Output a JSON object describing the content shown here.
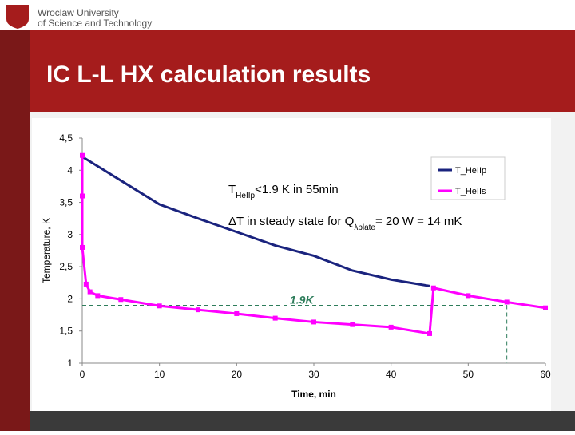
{
  "header": {
    "university": [
      "Wroclaw University",
      "of Science and Technology"
    ]
  },
  "chart_data": {
    "type": "line",
    "title": "IC L-L HX calculation results",
    "x_label": "Time, min",
    "y_label": "Temperature, K",
    "xlim": [
      0,
      60
    ],
    "xticks": [
      0,
      10,
      20,
      30,
      40,
      50,
      60
    ],
    "ylim": [
      1,
      4.5
    ],
    "yticks": [
      {
        "value": 1,
        "label": "1"
      },
      {
        "value": 1.5,
        "label": "1,5"
      },
      {
        "value": 2,
        "label": "2"
      },
      {
        "value": 2.5,
        "label": "2,5"
      },
      {
        "value": 3,
        "label": "3"
      },
      {
        "value": 3.5,
        "label": "3,5"
      },
      {
        "value": 4,
        "label": "4"
      },
      {
        "value": 4.5,
        "label": "4,5"
      }
    ],
    "series": [
      {
        "name": "T_HeIIp",
        "color": "#1a237e",
        "markers": false,
        "x": [
          0,
          5,
          10,
          15,
          20,
          25,
          30,
          35,
          40,
          45
        ],
        "values": [
          4.21,
          3.84,
          3.47,
          3.25,
          3.04,
          2.83,
          2.67,
          2.44,
          2.3,
          2.2
        ]
      },
      {
        "name": "T_HeIIs",
        "color": "#ff00ff",
        "markers": true,
        "x": [
          0,
          0,
          0,
          0.5,
          1,
          2,
          5,
          10,
          15,
          20,
          25,
          30,
          35,
          40,
          45,
          45.5,
          50,
          55,
          60
        ],
        "values": [
          4.23,
          3.6,
          2.8,
          2.23,
          2.11,
          2.05,
          1.99,
          1.89,
          1.83,
          1.77,
          1.7,
          1.64,
          1.6,
          1.56,
          1.46,
          2.17,
          2.05,
          1.95,
          1.86
        ]
      }
    ],
    "reference": {
      "y": 1.9,
      "x": 55,
      "label": "1.9K"
    },
    "annotations": [
      {
        "parts": [
          "T",
          "HeIIp",
          "<1.9 K in 55min"
        ],
        "sub": [
          false,
          true,
          false
        ]
      },
      {
        "parts": [
          "ΔT in steady state for Q",
          "λplate",
          "= 20 W  = 14 mK"
        ],
        "sub": [
          false,
          true,
          false
        ]
      }
    ]
  }
}
